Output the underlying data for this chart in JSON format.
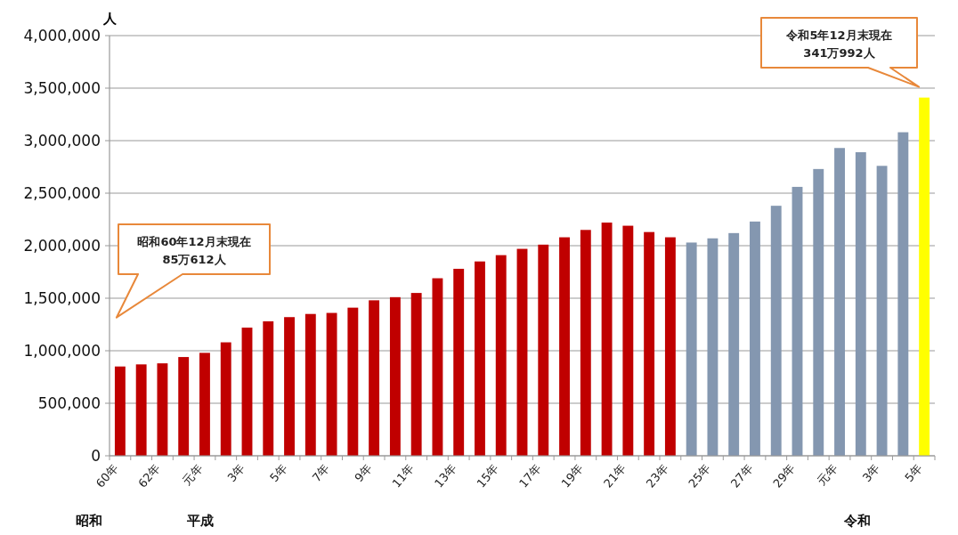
{
  "chart_data": {
    "type": "bar",
    "ylabel": "人",
    "categories": [
      "60年",
      null,
      "62年",
      null,
      "元年",
      null,
      "3年",
      null,
      "5年",
      null,
      "7年",
      null,
      "9年",
      null,
      "11年",
      null,
      "13年",
      null,
      "15年",
      null,
      "17年",
      null,
      "19年",
      null,
      "21年",
      null,
      "23年",
      null,
      "25年",
      null,
      "27年",
      null,
      "29年",
      null,
      "元年",
      null,
      "3年",
      null,
      "5年"
    ],
    "values": [
      850000,
      870000,
      880000,
      940000,
      980000,
      1080000,
      1220000,
      1280000,
      1320000,
      1350000,
      1360000,
      1410000,
      1480000,
      1510000,
      1550000,
      1690000,
      1780000,
      1850000,
      1910000,
      1970000,
      2010000,
      2080000,
      2150000,
      2220000,
      2190000,
      2130000,
      2080000,
      2030000,
      2070000,
      2120000,
      2230000,
      2380000,
      2560000,
      2730000,
      2930000,
      2890000,
      2760000,
      3080000,
      3410000
    ],
    "colors": [
      "#c00000",
      "#c00000",
      "#c00000",
      "#c00000",
      "#c00000",
      "#c00000",
      "#c00000",
      "#c00000",
      "#c00000",
      "#c00000",
      "#c00000",
      "#c00000",
      "#c00000",
      "#c00000",
      "#c00000",
      "#c00000",
      "#c00000",
      "#c00000",
      "#c00000",
      "#c00000",
      "#c00000",
      "#c00000",
      "#c00000",
      "#c00000",
      "#c00000",
      "#c00000",
      "#c00000",
      "#8497b0",
      "#8497b0",
      "#8497b0",
      "#8497b0",
      "#8497b0",
      "#8497b0",
      "#8497b0",
      "#8497b0",
      "#8497b0",
      "#8497b0",
      "#8497b0",
      "#ffff00"
    ],
    "ylim": [
      0,
      4000000
    ],
    "yticks": [
      0,
      {
        "value": 500000,
        "label": "500,000"
      },
      {
        "value": 1000000,
        "label": "1,000,000"
      },
      {
        "value": 1500000,
        "label": "1,500,000"
      },
      {
        "value": 2000000,
        "label": "2,000,000"
      },
      {
        "value": 2500000,
        "label": "2,500,000"
      },
      {
        "value": 3000000,
        "label": "3,000,000"
      },
      {
        "value": 3500000,
        "label": "3,500,000"
      },
      {
        "value": 4000000,
        "label": "4,000,000"
      }
    ],
    "grid": "y",
    "annotations": [
      "昭和60年12月末現在\n85万612人",
      "令和5年12月末現在\n341万992人",
      "昭和",
      "平成",
      "令和"
    ]
  }
}
